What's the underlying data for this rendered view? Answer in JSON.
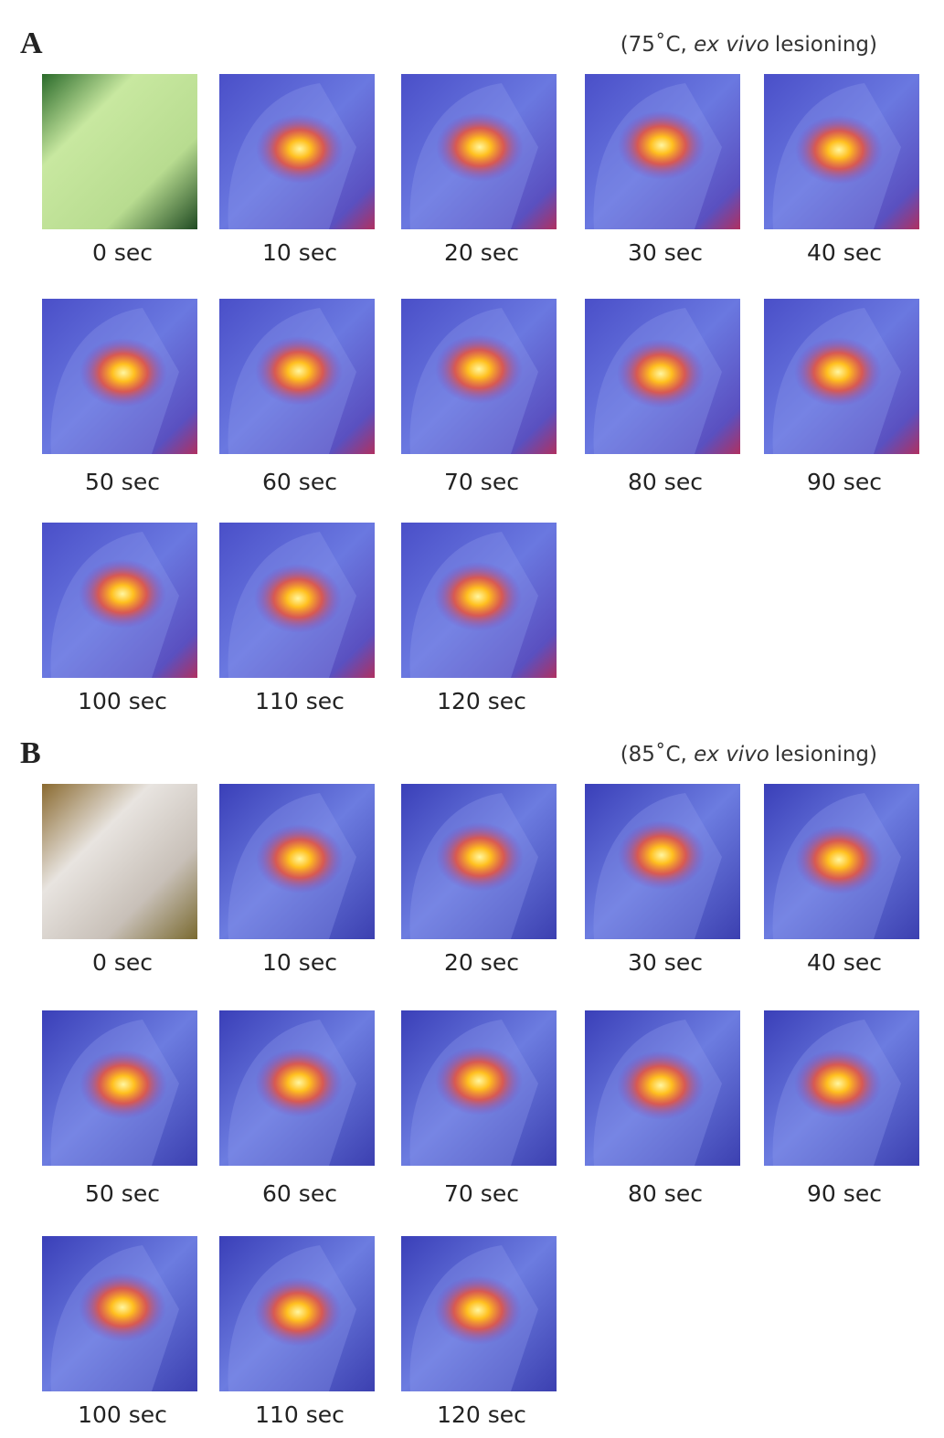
{
  "panels": [
    {
      "label": "A",
      "condition": {
        "before": "(75˚C, ",
        "italic": "ex vivo",
        "after": "lesioning)"
      },
      "frames": [
        "0 sec",
        "10 sec",
        "20 sec",
        "30 sec",
        "40 sec",
        "50 sec",
        "60 sec",
        "70 sec",
        "80 sec",
        "90 sec",
        "100 sec",
        "110 sec",
        "120 sec"
      ]
    },
    {
      "label": "B",
      "condition": {
        "before": "(85˚C, ",
        "italic": "ex vivo",
        "after": "lesioning)"
      },
      "frames": [
        "0 sec",
        "10 sec",
        "20 sec",
        "30 sec",
        "40 sec",
        "50 sec",
        "60 sec",
        "70 sec",
        "80 sec",
        "90 sec",
        "100 sec",
        "110 sec",
        "120 sec"
      ]
    }
  ]
}
